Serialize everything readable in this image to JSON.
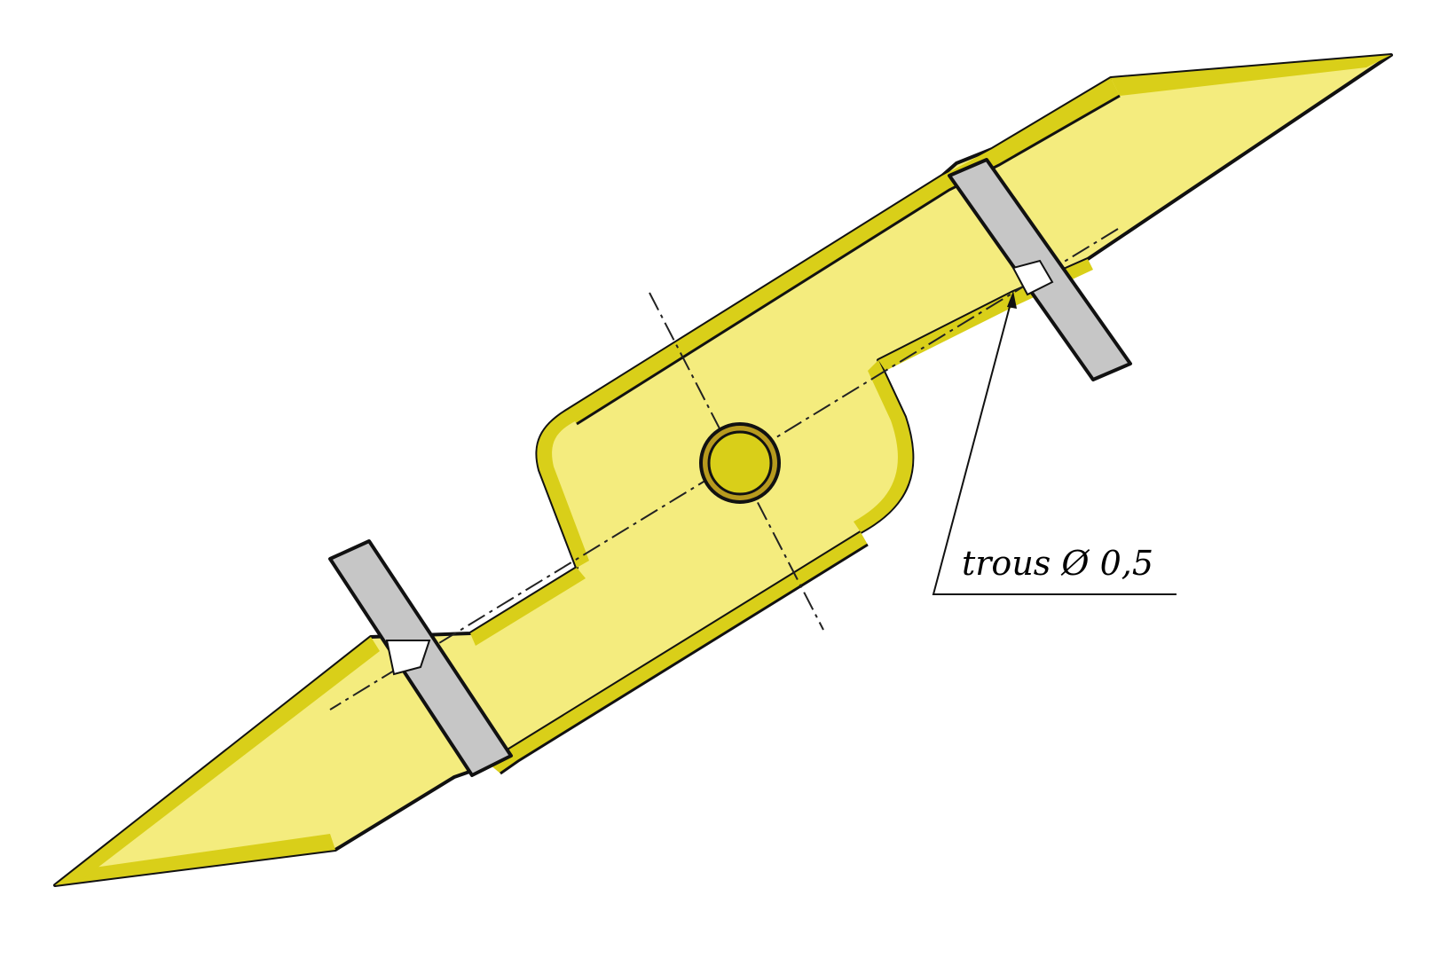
{
  "annotation": {
    "text": "trous Ø 0,5"
  },
  "colors": {
    "background": "#ffffff",
    "body_fill": "#f4ec7e",
    "bevel_fill": "#d9cf19",
    "outline": "#111111",
    "bracket_fill": "#c6c6c6",
    "center_line": "#222222",
    "bore_ring": "#b79a1e"
  },
  "icons": {
    "part": "bent-blade-icon",
    "bracket": "clamp-bracket-icon",
    "bore": "center-bore-icon"
  }
}
